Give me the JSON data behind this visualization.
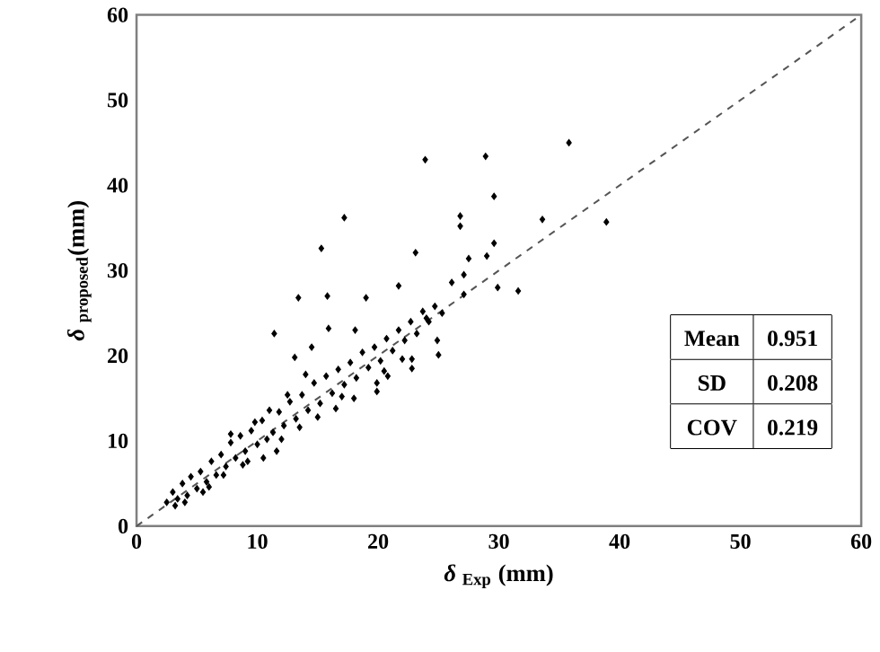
{
  "chart_data": {
    "type": "scatter",
    "xlabel": "*δ* $_{Exp}$ (mm)",
    "ylabel": "*δ* $_{proposed}$(mm)",
    "xlim": [
      0,
      60
    ],
    "ylim": [
      0,
      60
    ],
    "xticks": [
      0,
      10,
      20,
      30,
      40,
      50,
      60
    ],
    "yticks": [
      0,
      10,
      20,
      30,
      40,
      50,
      60
    ],
    "grid": false,
    "series": [
      {
        "color": "#000000",
        "marker": "diamond",
        "x": [
          35.8,
          23.9,
          28.9,
          29.6,
          17.2,
          26.8,
          26.8,
          33.6,
          38.9,
          15.3,
          23.1,
          27.5,
          29.0,
          29.6,
          27.1,
          26.1,
          29.9,
          31.6,
          27.1,
          13.4,
          15.8,
          19.0,
          21.7,
          11.4,
          15.9,
          18.1,
          13.1,
          14.5,
          24.9,
          25.0,
          22.8,
          22.8,
          19.9,
          19.9,
          20.8,
          2.5,
          3.0,
          3.4,
          3.8,
          4.2,
          4.5,
          5.0,
          5.3,
          5.8,
          6.2,
          6.6,
          7.0,
          7.4,
          7.8,
          8.2,
          8.6,
          9.0,
          9.5,
          10.0,
          10.4,
          10.8,
          11.3,
          11.8,
          12.2,
          12.7,
          13.2,
          13.7,
          14.2,
          14.7,
          15.2,
          15.7,
          16.2,
          16.7,
          17.2,
          17.7,
          18.2,
          18.7,
          19.2,
          19.7,
          20.2,
          20.7,
          21.2,
          21.7,
          22.2,
          22.7,
          23.2,
          23.7,
          24.2,
          24.7,
          25.3,
          4.0,
          5.5,
          7.2,
          8.8,
          10.5,
          12.0,
          13.5,
          15.0,
          16.5,
          18.0,
          3.2,
          6.0,
          9.2,
          11.0,
          12.5,
          14.0,
          17.0,
          20.5,
          22.0,
          9.8,
          7.8,
          11.6,
          24.0
        ],
        "values": [
          45.0,
          43.0,
          43.4,
          38.7,
          36.2,
          36.4,
          35.2,
          36.0,
          35.7,
          32.6,
          32.1,
          31.4,
          31.7,
          33.2,
          29.5,
          28.6,
          28.0,
          27.6,
          27.2,
          26.8,
          27.0,
          26.8,
          28.2,
          22.6,
          23.2,
          23.0,
          19.8,
          21.0,
          21.8,
          20.1,
          19.6,
          18.5,
          16.8,
          15.8,
          17.6,
          2.8,
          4.0,
          3.2,
          5.0,
          3.6,
          5.8,
          4.4,
          6.4,
          5.2,
          7.6,
          6.0,
          8.4,
          7.0,
          9.8,
          8.0,
          10.6,
          8.8,
          11.2,
          9.6,
          12.4,
          10.2,
          11.0,
          13.4,
          11.8,
          14.6,
          12.6,
          15.4,
          13.6,
          16.8,
          14.4,
          17.6,
          15.6,
          18.4,
          16.6,
          19.2,
          17.4,
          20.4,
          18.6,
          21.0,
          19.4,
          22.0,
          20.6,
          23.0,
          21.8,
          24.0,
          22.6,
          25.2,
          24.0,
          25.8,
          25.0,
          2.8,
          4.0,
          6.0,
          7.2,
          8.0,
          10.2,
          11.6,
          12.8,
          13.8,
          15.0,
          2.4,
          4.6,
          7.6,
          13.6,
          15.4,
          17.8,
          15.2,
          18.2,
          19.6,
          12.2,
          10.8,
          8.8,
          24.4
        ]
      },
      {
        "type": "line",
        "line_style": "dashed",
        "color": "#555555",
        "x": [
          0,
          60
        ],
        "values": [
          0,
          60
        ]
      }
    ],
    "annotations": [
      "Mean",
      "0.951",
      "SD",
      "0.208",
      "COV",
      "0.219"
    ]
  }
}
